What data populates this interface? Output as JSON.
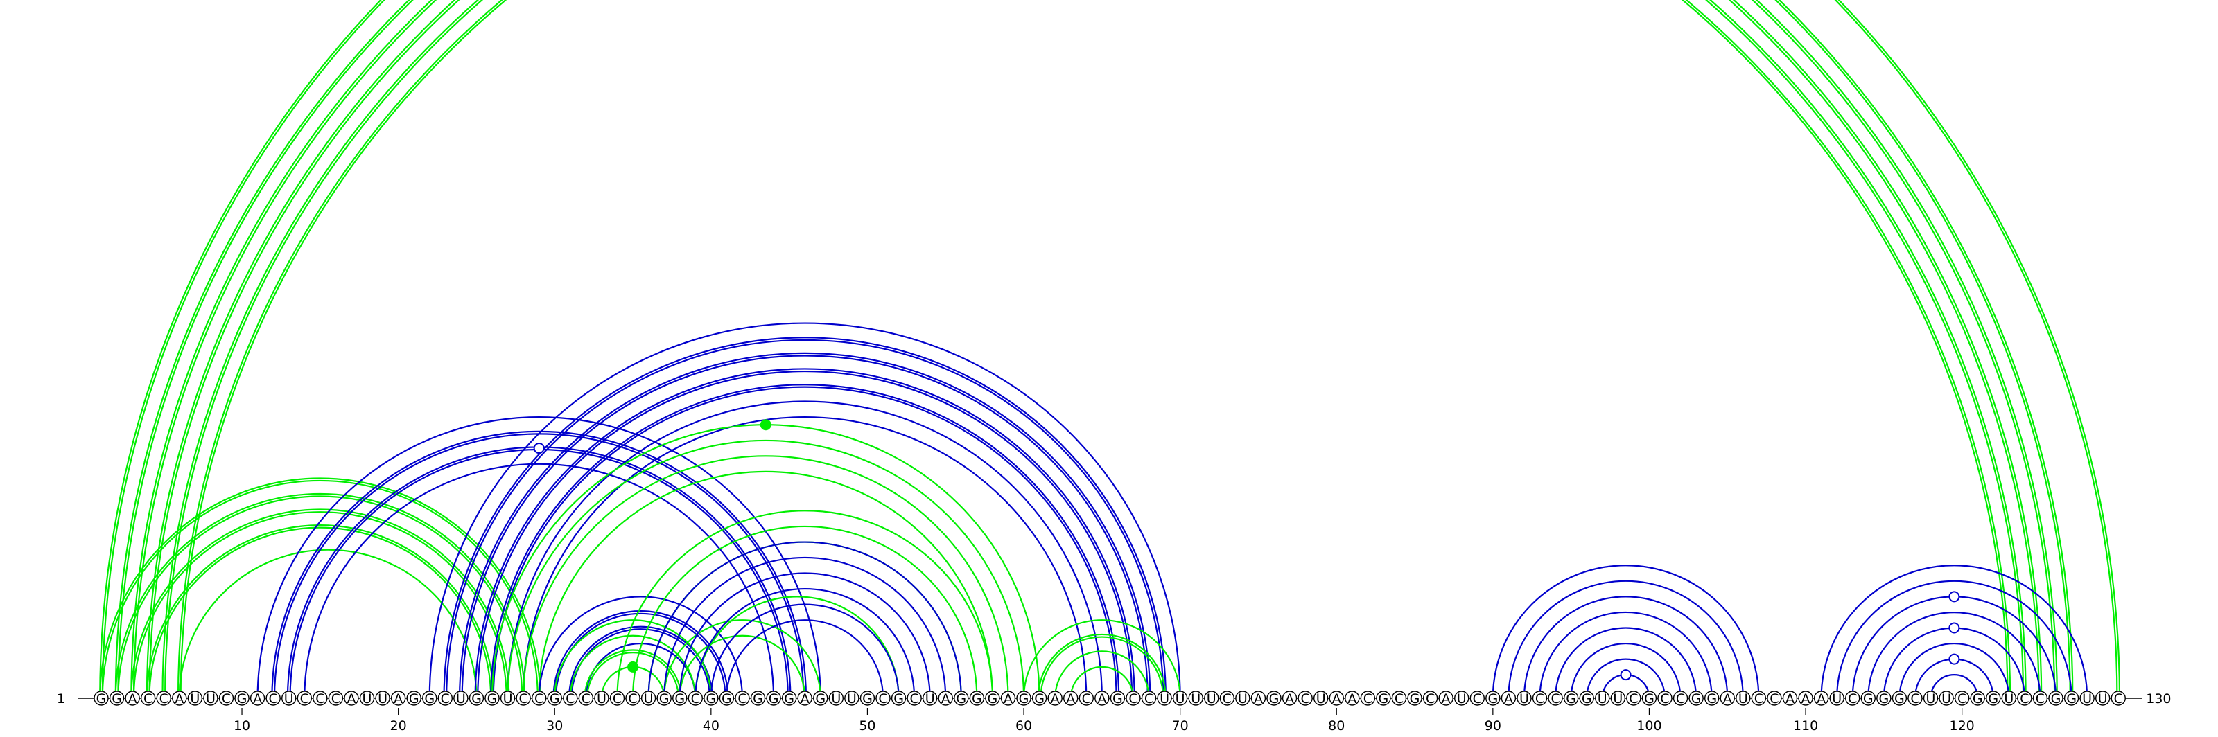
{
  "diagram": {
    "type": "rna-arc-diagram",
    "sequence": "GGACCAUUCGACUCCCAUUAGGCUGGUCCGCCUCCUGGCGGCGGGAGUUGCGCUAGGGAGGAACAGCCUUUUCUAGACUAACGCGCAUCGAUCCGGUUCGCCGGAUCCAAAUCGGGCUUCGGUCCGGUUC",
    "start_label": "1",
    "end_label": "130",
    "ticks": [
      10,
      20,
      30,
      40,
      50,
      60,
      70,
      80,
      90,
      100,
      110,
      120
    ],
    "colors": {
      "green": "#00ee00",
      "blue": "#0000cc"
    },
    "arcs": [
      {
        "i": 1,
        "j": 130,
        "color": "green",
        "double": true
      },
      {
        "i": 2,
        "j": 127,
        "color": "green",
        "double": true
      },
      {
        "i": 3,
        "j": 126,
        "color": "green",
        "double": true
      },
      {
        "i": 4,
        "j": 125,
        "color": "green",
        "double": true
      },
      {
        "i": 5,
        "j": 124,
        "color": "green",
        "double": true
      },
      {
        "i": 6,
        "j": 123,
        "color": "green",
        "double": true
      },
      {
        "i": 1,
        "j": 29,
        "color": "green",
        "double": true
      },
      {
        "i": 2,
        "j": 28,
        "color": "green",
        "double": true
      },
      {
        "i": 3,
        "j": 27,
        "color": "green",
        "double": true
      },
      {
        "i": 4,
        "j": 26,
        "color": "green",
        "double": true
      },
      {
        "i": 6,
        "j": 25,
        "color": "green",
        "double": false
      },
      {
        "i": 11,
        "j": 47,
        "color": "blue",
        "double": false
      },
      {
        "i": 12,
        "j": 46,
        "color": "blue",
        "double": true
      },
      {
        "i": 13,
        "j": 45,
        "color": "blue",
        "double": true
      },
      {
        "i": 14,
        "j": 44,
        "color": "blue",
        "double": false
      },
      {
        "i": 22,
        "j": 70,
        "color": "blue",
        "double": false
      },
      {
        "i": 23,
        "j": 69,
        "color": "blue",
        "double": true
      },
      {
        "i": 24,
        "j": 68,
        "color": "blue",
        "double": true
      },
      {
        "i": 25,
        "j": 67,
        "color": "blue",
        "double": true
      },
      {
        "i": 26,
        "j": 66,
        "color": "blue",
        "double": true
      },
      {
        "i": 27,
        "j": 65,
        "color": "blue",
        "double": false
      },
      {
        "i": 28,
        "j": 64,
        "color": "blue",
        "double": false
      },
      {
        "i": 26,
        "j": 61,
        "color": "green",
        "double": false
      },
      {
        "i": 27,
        "j": 60,
        "color": "green",
        "double": false
      },
      {
        "i": 28,
        "j": 59,
        "color": "green",
        "double": false
      },
      {
        "i": 29,
        "j": 58,
        "color": "green",
        "double": false
      },
      {
        "i": 29,
        "j": 42,
        "color": "blue",
        "double": false
      },
      {
        "i": 30,
        "j": 41,
        "color": "blue",
        "double": true
      },
      {
        "i": 31,
        "j": 40,
        "color": "blue",
        "double": true
      },
      {
        "i": 32,
        "j": 39,
        "color": "blue",
        "double": false
      },
      {
        "i": 30,
        "j": 40,
        "color": "green",
        "double": false
      },
      {
        "i": 31,
        "j": 39,
        "color": "green",
        "double": false
      },
      {
        "i": 32,
        "j": 38,
        "color": "green",
        "double": true
      },
      {
        "i": 33,
        "j": 37,
        "color": "green",
        "double": false
      },
      {
        "i": 34,
        "j": 58,
        "color": "green",
        "double": false
      },
      {
        "i": 35,
        "j": 57,
        "color": "green",
        "double": false
      },
      {
        "i": 36,
        "j": 56,
        "color": "green",
        "double": false
      },
      {
        "i": 37,
        "j": 47,
        "color": "green",
        "double": false
      },
      {
        "i": 38,
        "j": 46,
        "color": "green",
        "double": false
      },
      {
        "i": 39,
        "j": 52,
        "color": "green",
        "double": false
      },
      {
        "i": 36,
        "j": 56,
        "color": "blue",
        "double": false
      },
      {
        "i": 37,
        "j": 55,
        "color": "blue",
        "double": false
      },
      {
        "i": 38,
        "j": 54,
        "color": "blue",
        "double": false
      },
      {
        "i": 39,
        "j": 53,
        "color": "blue",
        "double": false
      },
      {
        "i": 40,
        "j": 52,
        "color": "blue",
        "double": false
      },
      {
        "i": 41,
        "j": 51,
        "color": "blue",
        "double": false
      },
      {
        "i": 60,
        "j": 70,
        "color": "green",
        "double": false
      },
      {
        "i": 61,
        "j": 69,
        "color": "green",
        "double": true
      },
      {
        "i": 62,
        "j": 68,
        "color": "green",
        "double": false
      },
      {
        "i": 63,
        "j": 67,
        "color": "green",
        "double": false
      },
      {
        "i": 90,
        "j": 107,
        "color": "blue",
        "double": false
      },
      {
        "i": 91,
        "j": 106,
        "color": "blue",
        "double": false
      },
      {
        "i": 92,
        "j": 105,
        "color": "blue",
        "double": false
      },
      {
        "i": 93,
        "j": 104,
        "color": "blue",
        "double": false
      },
      {
        "i": 94,
        "j": 103,
        "color": "blue",
        "double": false
      },
      {
        "i": 95,
        "j": 102,
        "color": "blue",
        "double": false
      },
      {
        "i": 96,
        "j": 101,
        "color": "blue",
        "double": false
      },
      {
        "i": 97,
        "j": 100,
        "color": "blue",
        "double": false
      },
      {
        "i": 111,
        "j": 128,
        "color": "blue",
        "double": false
      },
      {
        "i": 112,
        "j": 127,
        "color": "blue",
        "double": false
      },
      {
        "i": 113,
        "j": 126,
        "color": "blue",
        "double": false
      },
      {
        "i": 114,
        "j": 125,
        "color": "blue",
        "double": false
      },
      {
        "i": 115,
        "j": 124,
        "color": "blue",
        "double": false
      },
      {
        "i": 116,
        "j": 123,
        "color": "blue",
        "double": false
      },
      {
        "i": 117,
        "j": 122,
        "color": "blue",
        "double": false
      },
      {
        "i": 118,
        "j": 121,
        "color": "blue",
        "double": false
      }
    ],
    "markers": [
      {
        "i": 1,
        "j": 130,
        "color": "green",
        "filled": false
      },
      {
        "i": 26,
        "j": 61,
        "color": "green",
        "filled": true
      },
      {
        "i": 13,
        "j": 45,
        "color": "blue",
        "filled": false
      },
      {
        "i": 33,
        "j": 37,
        "color": "green",
        "filled": true
      },
      {
        "i": 97,
        "j": 100,
        "color": "blue",
        "filled": false
      },
      {
        "i": 113,
        "j": 126,
        "color": "blue",
        "filled": false
      },
      {
        "i": 115,
        "j": 124,
        "color": "blue",
        "filled": false
      },
      {
        "i": 117,
        "j": 122,
        "color": "blue",
        "filled": false
      }
    ]
  }
}
